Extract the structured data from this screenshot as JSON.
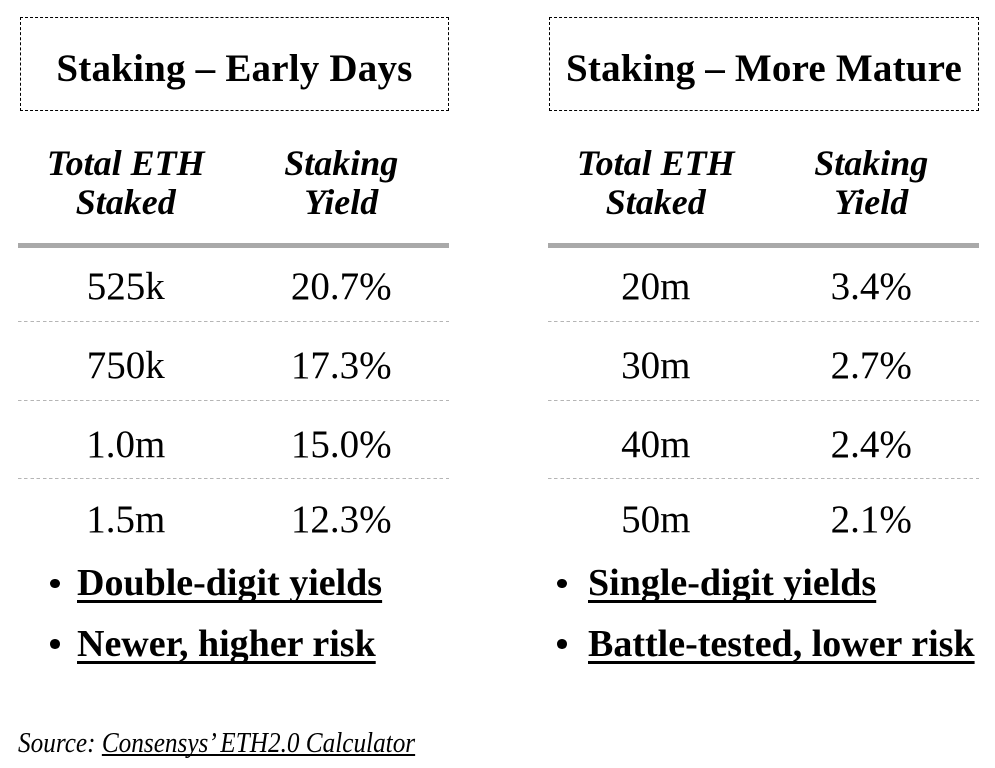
{
  "colors": {
    "background": "#ffffff",
    "text": "#000000",
    "header_rule": "#a9a9a9",
    "row_divider": "#b5b5b5",
    "box_border": "#000000"
  },
  "panels": [
    {
      "title": "Staking – Early Days",
      "columns": [
        {
          "line1": "Total ETH",
          "line2": "Staked"
        },
        {
          "line1": "Staking",
          "line2": "Yield"
        }
      ],
      "rows": [
        {
          "staked": "525k",
          "yield": "20.7%"
        },
        {
          "staked": "750k",
          "yield": "17.3%"
        },
        {
          "staked": "1.0m",
          "yield": "15.0%"
        },
        {
          "staked": "1.5m",
          "yield": "12.3%"
        }
      ],
      "bullets": [
        "Double-digit yields",
        "Newer, higher risk"
      ]
    },
    {
      "title": "Staking – More Mature",
      "columns": [
        {
          "line1": "Total ETH",
          "line2": "Staked"
        },
        {
          "line1": "Staking",
          "line2": "Yield"
        }
      ],
      "rows": [
        {
          "staked": "20m",
          "yield": "3.4%"
        },
        {
          "staked": "30m",
          "yield": "2.7%"
        },
        {
          "staked": "40m",
          "yield": "2.4%"
        },
        {
          "staked": "50m",
          "yield": "2.1%"
        }
      ],
      "bullets": [
        "Single-digit yields",
        "Battle-tested, lower risk"
      ]
    }
  ],
  "source": {
    "prefix": "Source: ",
    "link_text": "Consensys’ ETH2.0 Calculator"
  },
  "chart_data": [
    {
      "type": "table",
      "title": "Staking – Early Days",
      "columns": [
        "Total ETH Staked",
        "Staking Yield"
      ],
      "rows": [
        [
          "525k",
          "20.7%"
        ],
        [
          "750k",
          "17.3%"
        ],
        [
          "1.0m",
          "15.0%"
        ],
        [
          "1.5m",
          "12.3%"
        ]
      ],
      "total_eth_staked": [
        "525k",
        "750k",
        "1.0m",
        "1.5m"
      ],
      "staking_yield_pct": [
        20.7,
        17.3,
        15.0,
        12.3
      ],
      "annotations": [
        "Double-digit yields",
        "Newer, higher risk"
      ]
    },
    {
      "type": "table",
      "title": "Staking – More Mature",
      "columns": [
        "Total ETH Staked",
        "Staking Yield"
      ],
      "rows": [
        [
          "20m",
          "3.4%"
        ],
        [
          "30m",
          "2.7%"
        ],
        [
          "40m",
          "2.4%"
        ],
        [
          "50m",
          "2.1%"
        ]
      ],
      "total_eth_staked": [
        "20m",
        "30m",
        "40m",
        "50m"
      ],
      "staking_yield_pct": [
        3.4,
        2.7,
        2.4,
        2.1
      ],
      "annotations": [
        "Single-digit yields",
        "Battle-tested, lower risk"
      ]
    }
  ],
  "source_note": "Source: Consensys’ ETH2.0 Calculator"
}
